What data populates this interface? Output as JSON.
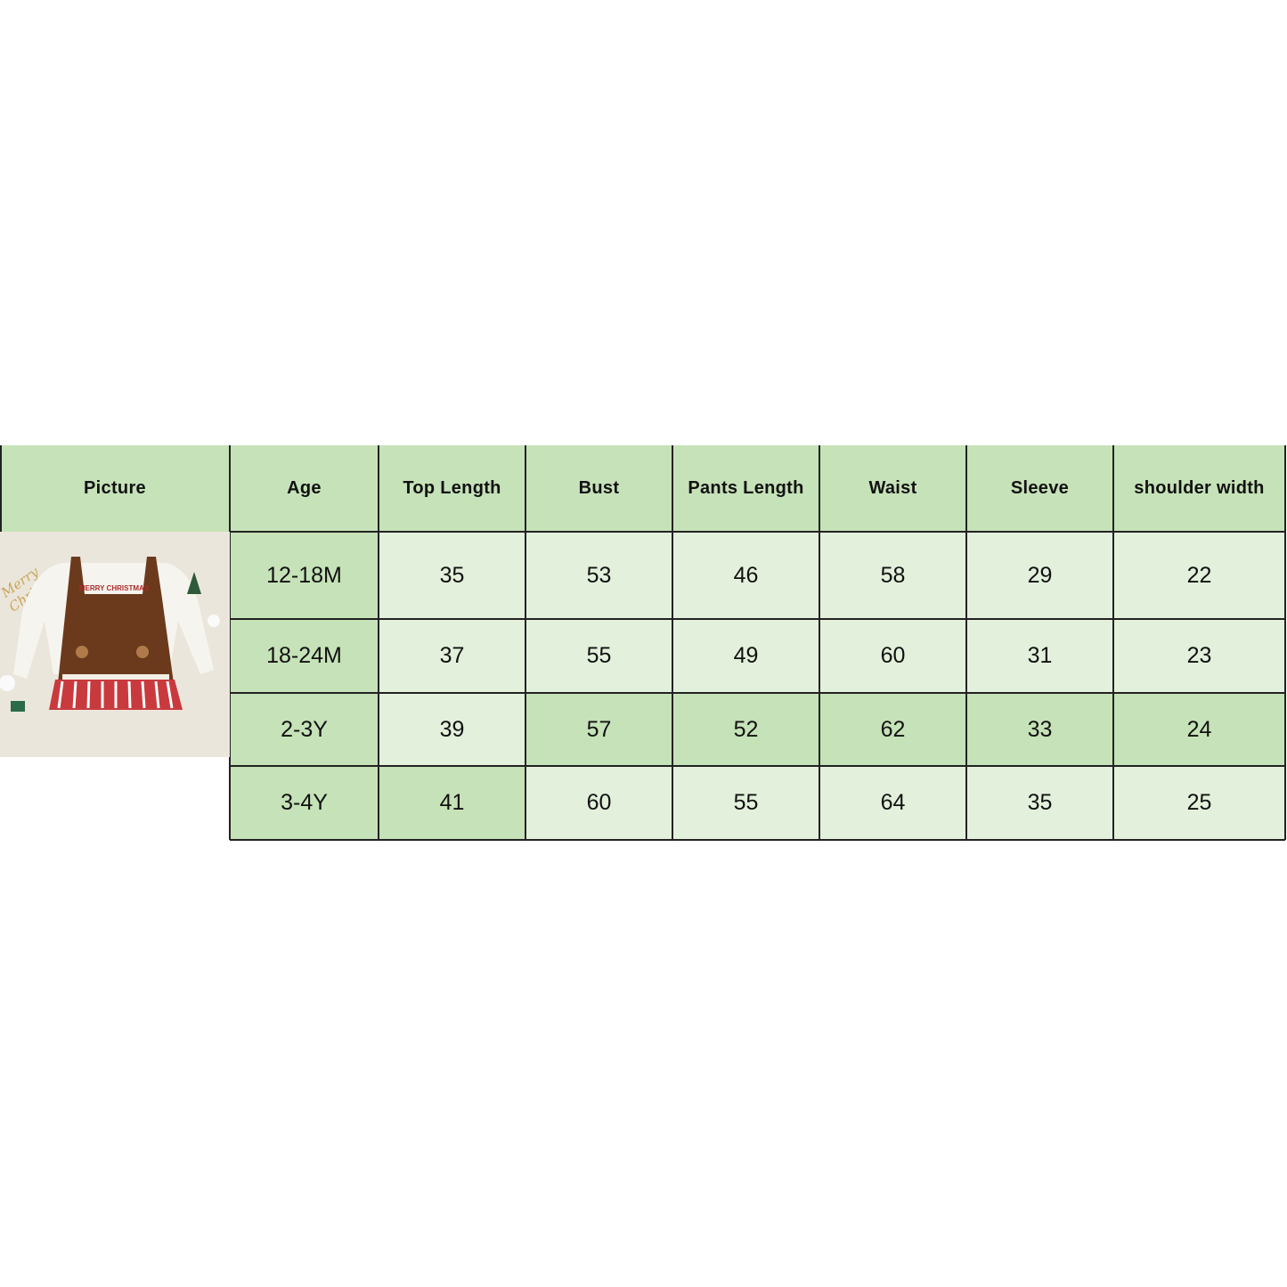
{
  "colors": {
    "dark": "#c6e2b8",
    "light": "#e3f0dc",
    "border": "#222222"
  },
  "table": {
    "headers": [
      "Picture",
      "Age",
      "Top Length",
      "Bust",
      "Pants Length",
      "Waist",
      "Sleeve",
      "shoulder width"
    ],
    "rows": [
      {
        "cells": [
          "12-18M",
          "35",
          "53",
          "46",
          "58",
          "29",
          "22"
        ],
        "shaded": [
          true,
          false,
          false,
          false,
          false,
          false,
          false
        ]
      },
      {
        "cells": [
          "18-24M",
          "37",
          "55",
          "49",
          "60",
          "31",
          "23"
        ],
        "shaded": [
          true,
          false,
          false,
          false,
          false,
          false,
          false
        ]
      },
      {
        "cells": [
          "2-3Y",
          "39",
          "57",
          "52",
          "62",
          "33",
          "24"
        ],
        "shaded": [
          true,
          false,
          true,
          true,
          true,
          true,
          true
        ]
      },
      {
        "cells": [
          "3-4Y",
          "41",
          "60",
          "55",
          "64",
          "35",
          "25"
        ],
        "shaded": [
          true,
          true,
          false,
          false,
          false,
          false,
          false
        ]
      }
    ]
  },
  "picture": {
    "icon": "product-photo-dress",
    "logo_text": "Merry Christmas"
  }
}
